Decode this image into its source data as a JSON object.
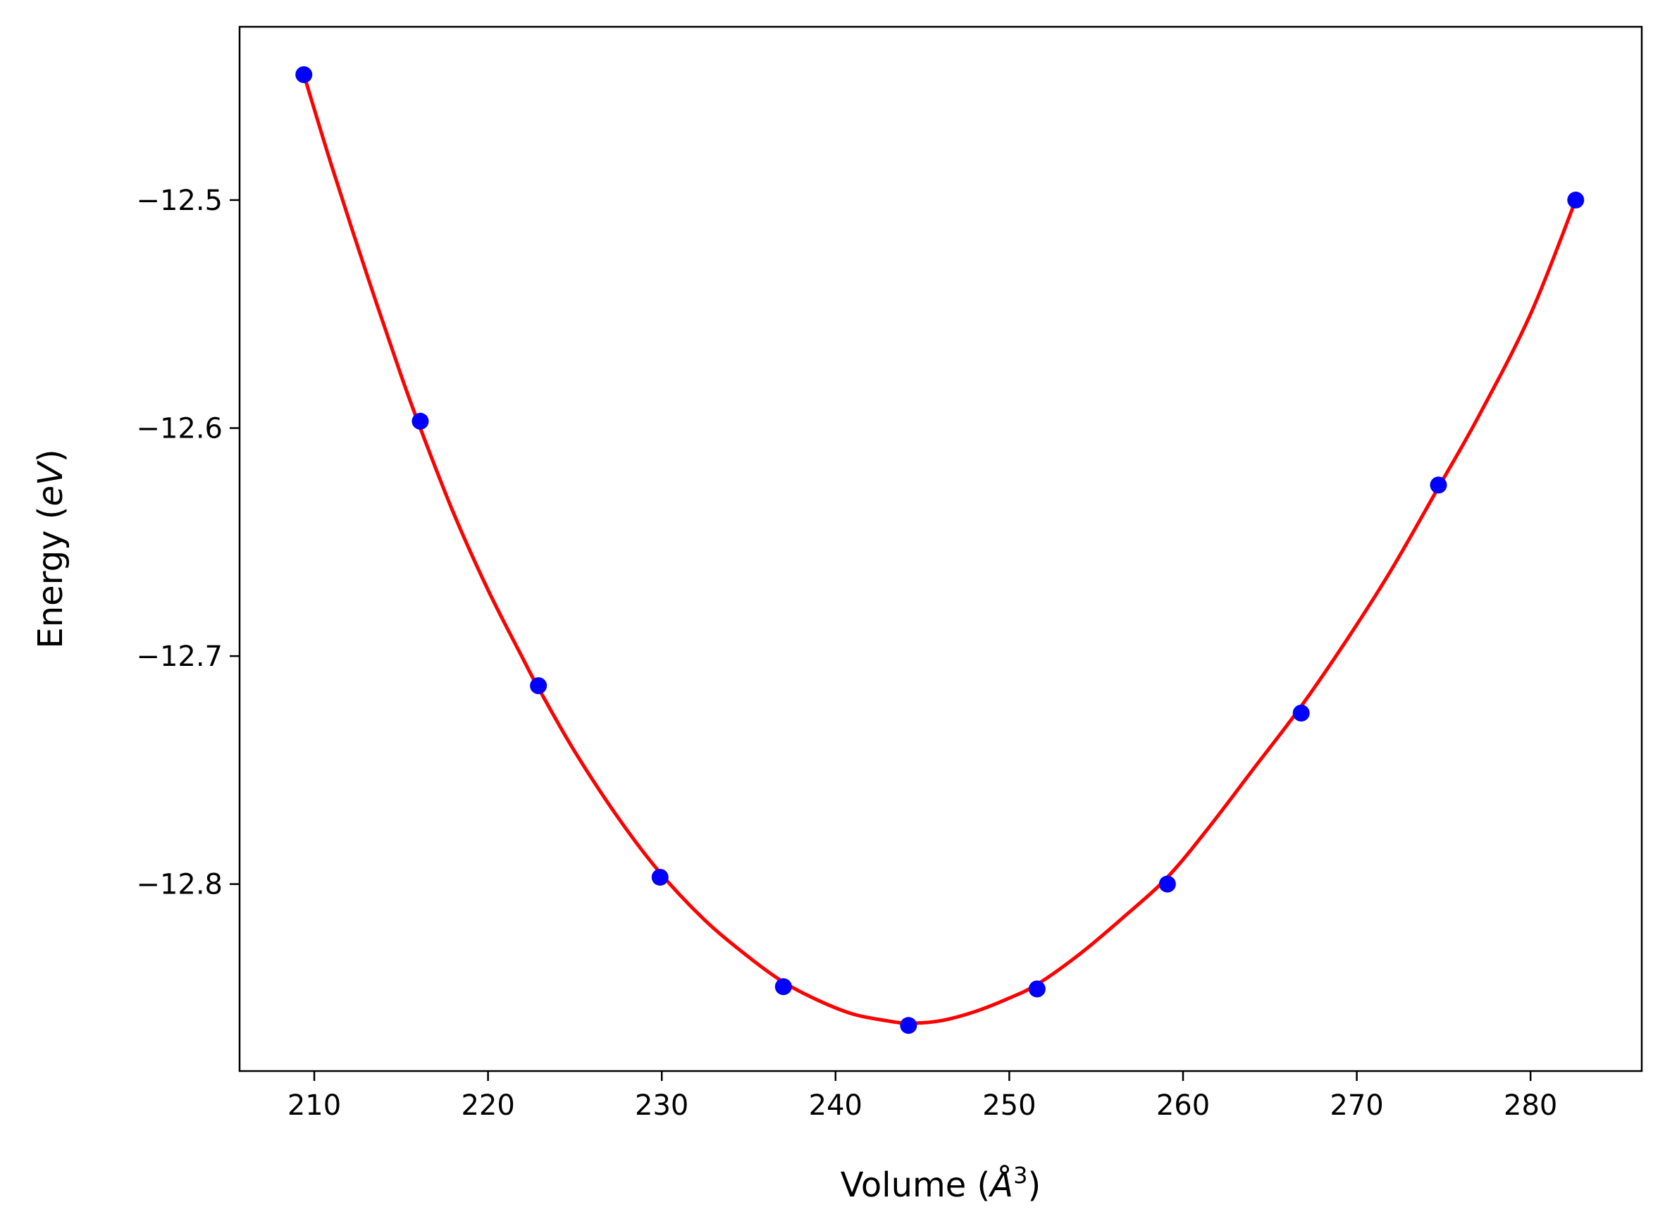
{
  "chart_data": {
    "type": "scatter",
    "xlabel": "Volume (Å³)",
    "xlabel_parts": {
      "text": "Volume (",
      "symbol": "Å",
      "sup": "3",
      "close": ")"
    },
    "ylabel": "Energy (eV)",
    "ylabel_parts": {
      "text": "Energy (",
      "italic": "eV",
      "close": ")"
    },
    "xlim": [
      205.7,
      286.4
    ],
    "ylim": [
      -12.882,
      -12.424
    ],
    "xticks": [
      210,
      220,
      230,
      240,
      250,
      260,
      270,
      280
    ],
    "xtick_labels": [
      "210",
      "220",
      "230",
      "240",
      "250",
      "260",
      "270",
      "280"
    ],
    "yticks": [
      -12.5,
      -12.6,
      -12.7,
      -12.8
    ],
    "ytick_labels": [
      "−12.5",
      "−12.6",
      "−12.7",
      "−12.8"
    ],
    "grid": false,
    "series": [
      {
        "kind": "points",
        "color": "#0000ff",
        "x": [
          209.4,
          216.1,
          222.9,
          229.9,
          237.0,
          244.2,
          251.6,
          259.1,
          266.8,
          274.7,
          282.6
        ],
        "y": [
          -12.445,
          -12.597,
          -12.713,
          -12.797,
          -12.845,
          -12.862,
          -12.846,
          -12.8,
          -12.725,
          -12.625,
          -12.5
        ]
      },
      {
        "kind": "fit-line",
        "color": "#ff0000",
        "x": [
          209.4,
          211.0,
          213.0,
          215.0,
          216.1,
          218.0,
          220.0,
          222.0,
          222.9,
          225.0,
          227.5,
          229.9,
          232.5,
          235.0,
          237.0,
          239.0,
          241.0,
          243.0,
          244.2,
          246.0,
          248.0,
          250.0,
          251.6,
          254.0,
          256.5,
          259.1,
          261.5,
          264.0,
          266.8,
          269.5,
          272.0,
          274.7,
          277.0,
          280.0,
          282.6
        ],
        "y": [
          -12.445,
          -12.485,
          -12.532,
          -12.577,
          -12.6,
          -12.637,
          -12.671,
          -12.701,
          -12.714,
          -12.742,
          -12.771,
          -12.795,
          -12.816,
          -12.832,
          -12.843,
          -12.851,
          -12.857,
          -12.86,
          -12.861,
          -12.86,
          -12.856,
          -12.85,
          -12.844,
          -12.831,
          -12.815,
          -12.797,
          -12.775,
          -12.75,
          -12.722,
          -12.692,
          -12.662,
          -12.626,
          -12.595,
          -12.55,
          -12.5
        ]
      }
    ]
  }
}
